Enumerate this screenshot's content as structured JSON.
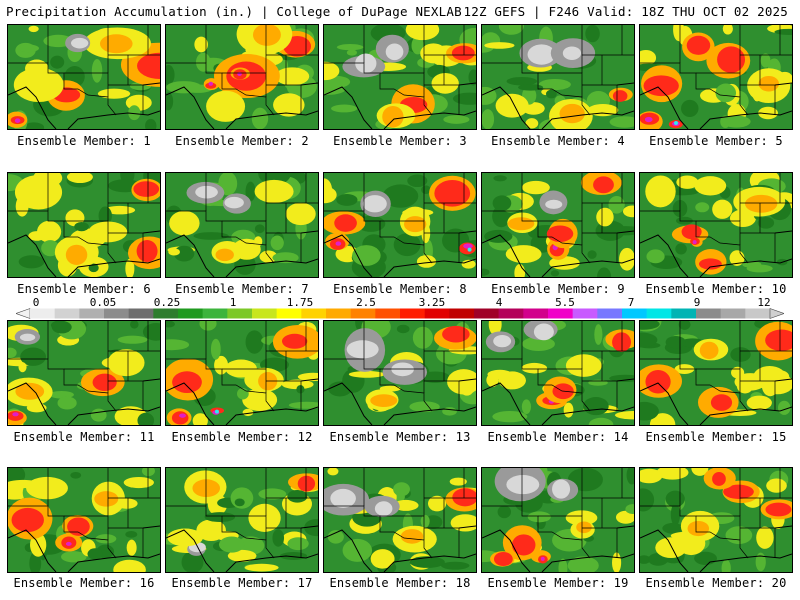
{
  "header": {
    "left": "Precipitation Accumulation (in.) | College of DuPage NEXLAB",
    "right": "12Z GEFS | F246 Valid: 18Z THU OCT 02 2025"
  },
  "members": [
    {
      "label": "Ensemble Member: 1"
    },
    {
      "label": "Ensemble Member: 2"
    },
    {
      "label": "Ensemble Member: 3"
    },
    {
      "label": "Ensemble Member: 4"
    },
    {
      "label": "Ensemble Member: 5"
    },
    {
      "label": "Ensemble Member: 6"
    },
    {
      "label": "Ensemble Member: 7"
    },
    {
      "label": "Ensemble Member: 8"
    },
    {
      "label": "Ensemble Member: 9"
    },
    {
      "label": "Ensemble Member: 10"
    },
    {
      "label": "Ensemble Member: 11"
    },
    {
      "label": "Ensemble Member: 12"
    },
    {
      "label": "Ensemble Member: 13"
    },
    {
      "label": "Ensemble Member: 14"
    },
    {
      "label": "Ensemble Member: 15"
    },
    {
      "label": "Ensemble Member: 16"
    },
    {
      "label": "Ensemble Member: 17"
    },
    {
      "label": "Ensemble Member: 18"
    },
    {
      "label": "Ensemble Member: 19"
    },
    {
      "label": "Ensemble Member: 20"
    }
  ],
  "colorbar": {
    "tick_labels": [
      "0",
      "0.05",
      "0.25",
      "1",
      "1.75",
      "2.5",
      "3.25",
      "4",
      "5.5",
      "7",
      "9",
      "12"
    ],
    "colors": [
      "#ededed",
      "#d2d2d2",
      "#b0b0b0",
      "#8c8c8c",
      "#6e6e6e",
      "#2e7d2e",
      "#1f9a1f",
      "#3cb43c",
      "#7cc828",
      "#c8e61e",
      "#ffff00",
      "#ffd200",
      "#ffaa00",
      "#ff8200",
      "#ff5000",
      "#ff1e00",
      "#e10000",
      "#c00000",
      "#a00028",
      "#b4005a",
      "#d2008c",
      "#f000c8",
      "#c85aff",
      "#7878ff",
      "#00c8ff",
      "#00e6e6",
      "#00b4b4",
      "#8c8c8c",
      "#a8a8a8",
      "#c8c8c8"
    ]
  },
  "map_colors": {
    "base": "#2f8f2f",
    "dark_green": "#1f7a1f",
    "light_green": "#55b533",
    "yellow": "#f2ec1c",
    "orange": "#ffab00",
    "red": "#ff2a1a",
    "dark_red": "#c81e1e",
    "magenta": "#e01ec8",
    "cyan": "#2ee8ee",
    "gray": "#9a9a9a",
    "light_gray": "#d8d8d8",
    "boundary": "#000000"
  }
}
